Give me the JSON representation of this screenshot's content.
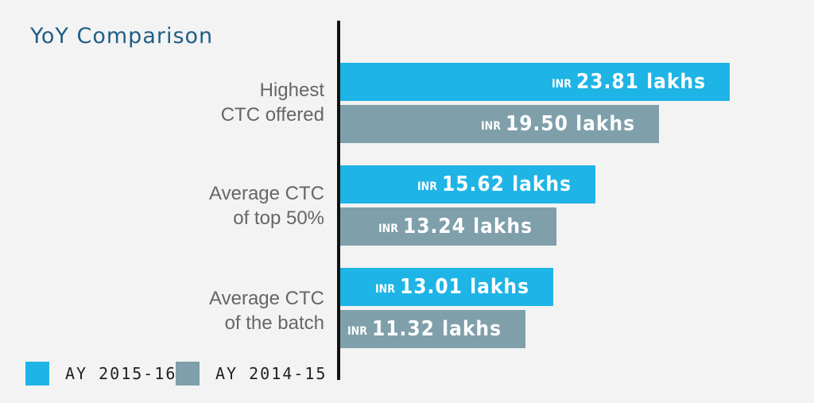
{
  "title": "YoY Comparison",
  "colors": {
    "title": "#1f5e86",
    "series_current": "#1eb4e6",
    "series_previous": "#7f9fab",
    "axis": "#111111"
  },
  "chart_data": {
    "type": "bar",
    "orientation": "horizontal",
    "title": "YoY Comparison",
    "categories": [
      "Highest\nCTC offered",
      "Average CTC\nof top 50%",
      "Average CTC\nof the batch"
    ],
    "currency_label": "INR",
    "unit_label": "lakhs",
    "series": [
      {
        "name": "AY 2015-16",
        "values": [
          23.81,
          15.62,
          13.01
        ],
        "labels": [
          "23.81 lakhs",
          "15.62 lakhs",
          "13.01 lakhs"
        ]
      },
      {
        "name": "AY 2014-15",
        "values": [
          19.5,
          13.24,
          11.32
        ],
        "labels": [
          "19.50 lakhs",
          "13.24 lakhs",
          "11.32 lakhs"
        ]
      }
    ],
    "xlim": [
      0,
      23.81
    ],
    "grid": false,
    "legend": "bottom-left"
  }
}
